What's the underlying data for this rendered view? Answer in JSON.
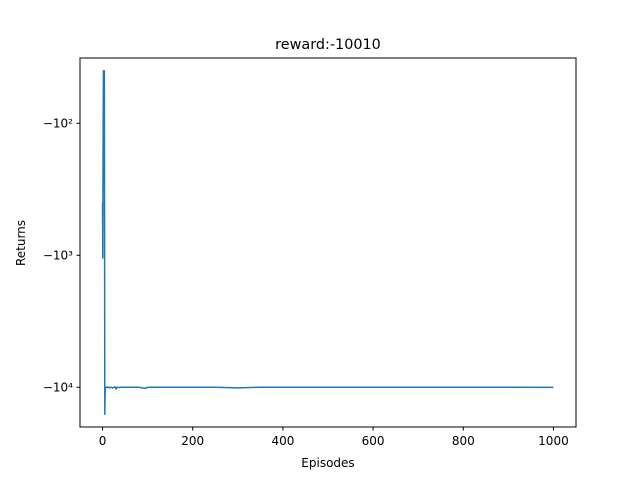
{
  "chart_data": {
    "type": "line",
    "title": "reward:-10010",
    "xlabel": "Episodes",
    "ylabel": "Returns",
    "yscale": "symlog-negative",
    "xlim": [
      -50,
      1050
    ],
    "ylim": [
      -20000,
      -32
    ],
    "x_ticks": [
      {
        "value": 0,
        "label": "0"
      },
      {
        "value": 200,
        "label": "200"
      },
      {
        "value": 400,
        "label": "400"
      },
      {
        "value": 600,
        "label": "600"
      },
      {
        "value": 800,
        "label": "800"
      },
      {
        "value": 1000,
        "label": "1000"
      }
    ],
    "y_ticks": [
      {
        "value": -100,
        "label": "−10²"
      },
      {
        "value": -1000,
        "label": "−10³"
      },
      {
        "value": -10000,
        "label": "−10⁴"
      }
    ],
    "grid": false,
    "series": [
      {
        "color": "#1f77b4",
        "x": [
          0,
          0.5,
          1,
          1.5,
          2,
          2.5,
          3,
          3.5,
          4,
          4.5,
          5,
          5.5,
          6,
          7,
          8,
          10,
          12,
          15,
          18,
          20,
          22,
          25,
          28,
          30,
          32,
          35,
          40,
          50,
          60,
          80,
          95,
          100,
          150,
          200,
          250,
          300,
          350,
          400,
          500,
          600,
          700,
          800,
          900,
          1000
        ],
        "y": [
          -400,
          -1050,
          -250,
          -80,
          -40,
          -40,
          -150,
          -40,
          -40,
          -600,
          -16000,
          -12000,
          -10300,
          -10000,
          -10050,
          -10000,
          -9950,
          -10100,
          -10000,
          -10000,
          -10150,
          -10000,
          -9950,
          -10300,
          -10000,
          -10050,
          -10000,
          -10000,
          -10000,
          -10000,
          -10200,
          -10000,
          -10000,
          -10000,
          -10000,
          -10100,
          -10000,
          -10000,
          -10000,
          -10000,
          -10000,
          -10000,
          -10000,
          -10010
        ]
      }
    ]
  }
}
